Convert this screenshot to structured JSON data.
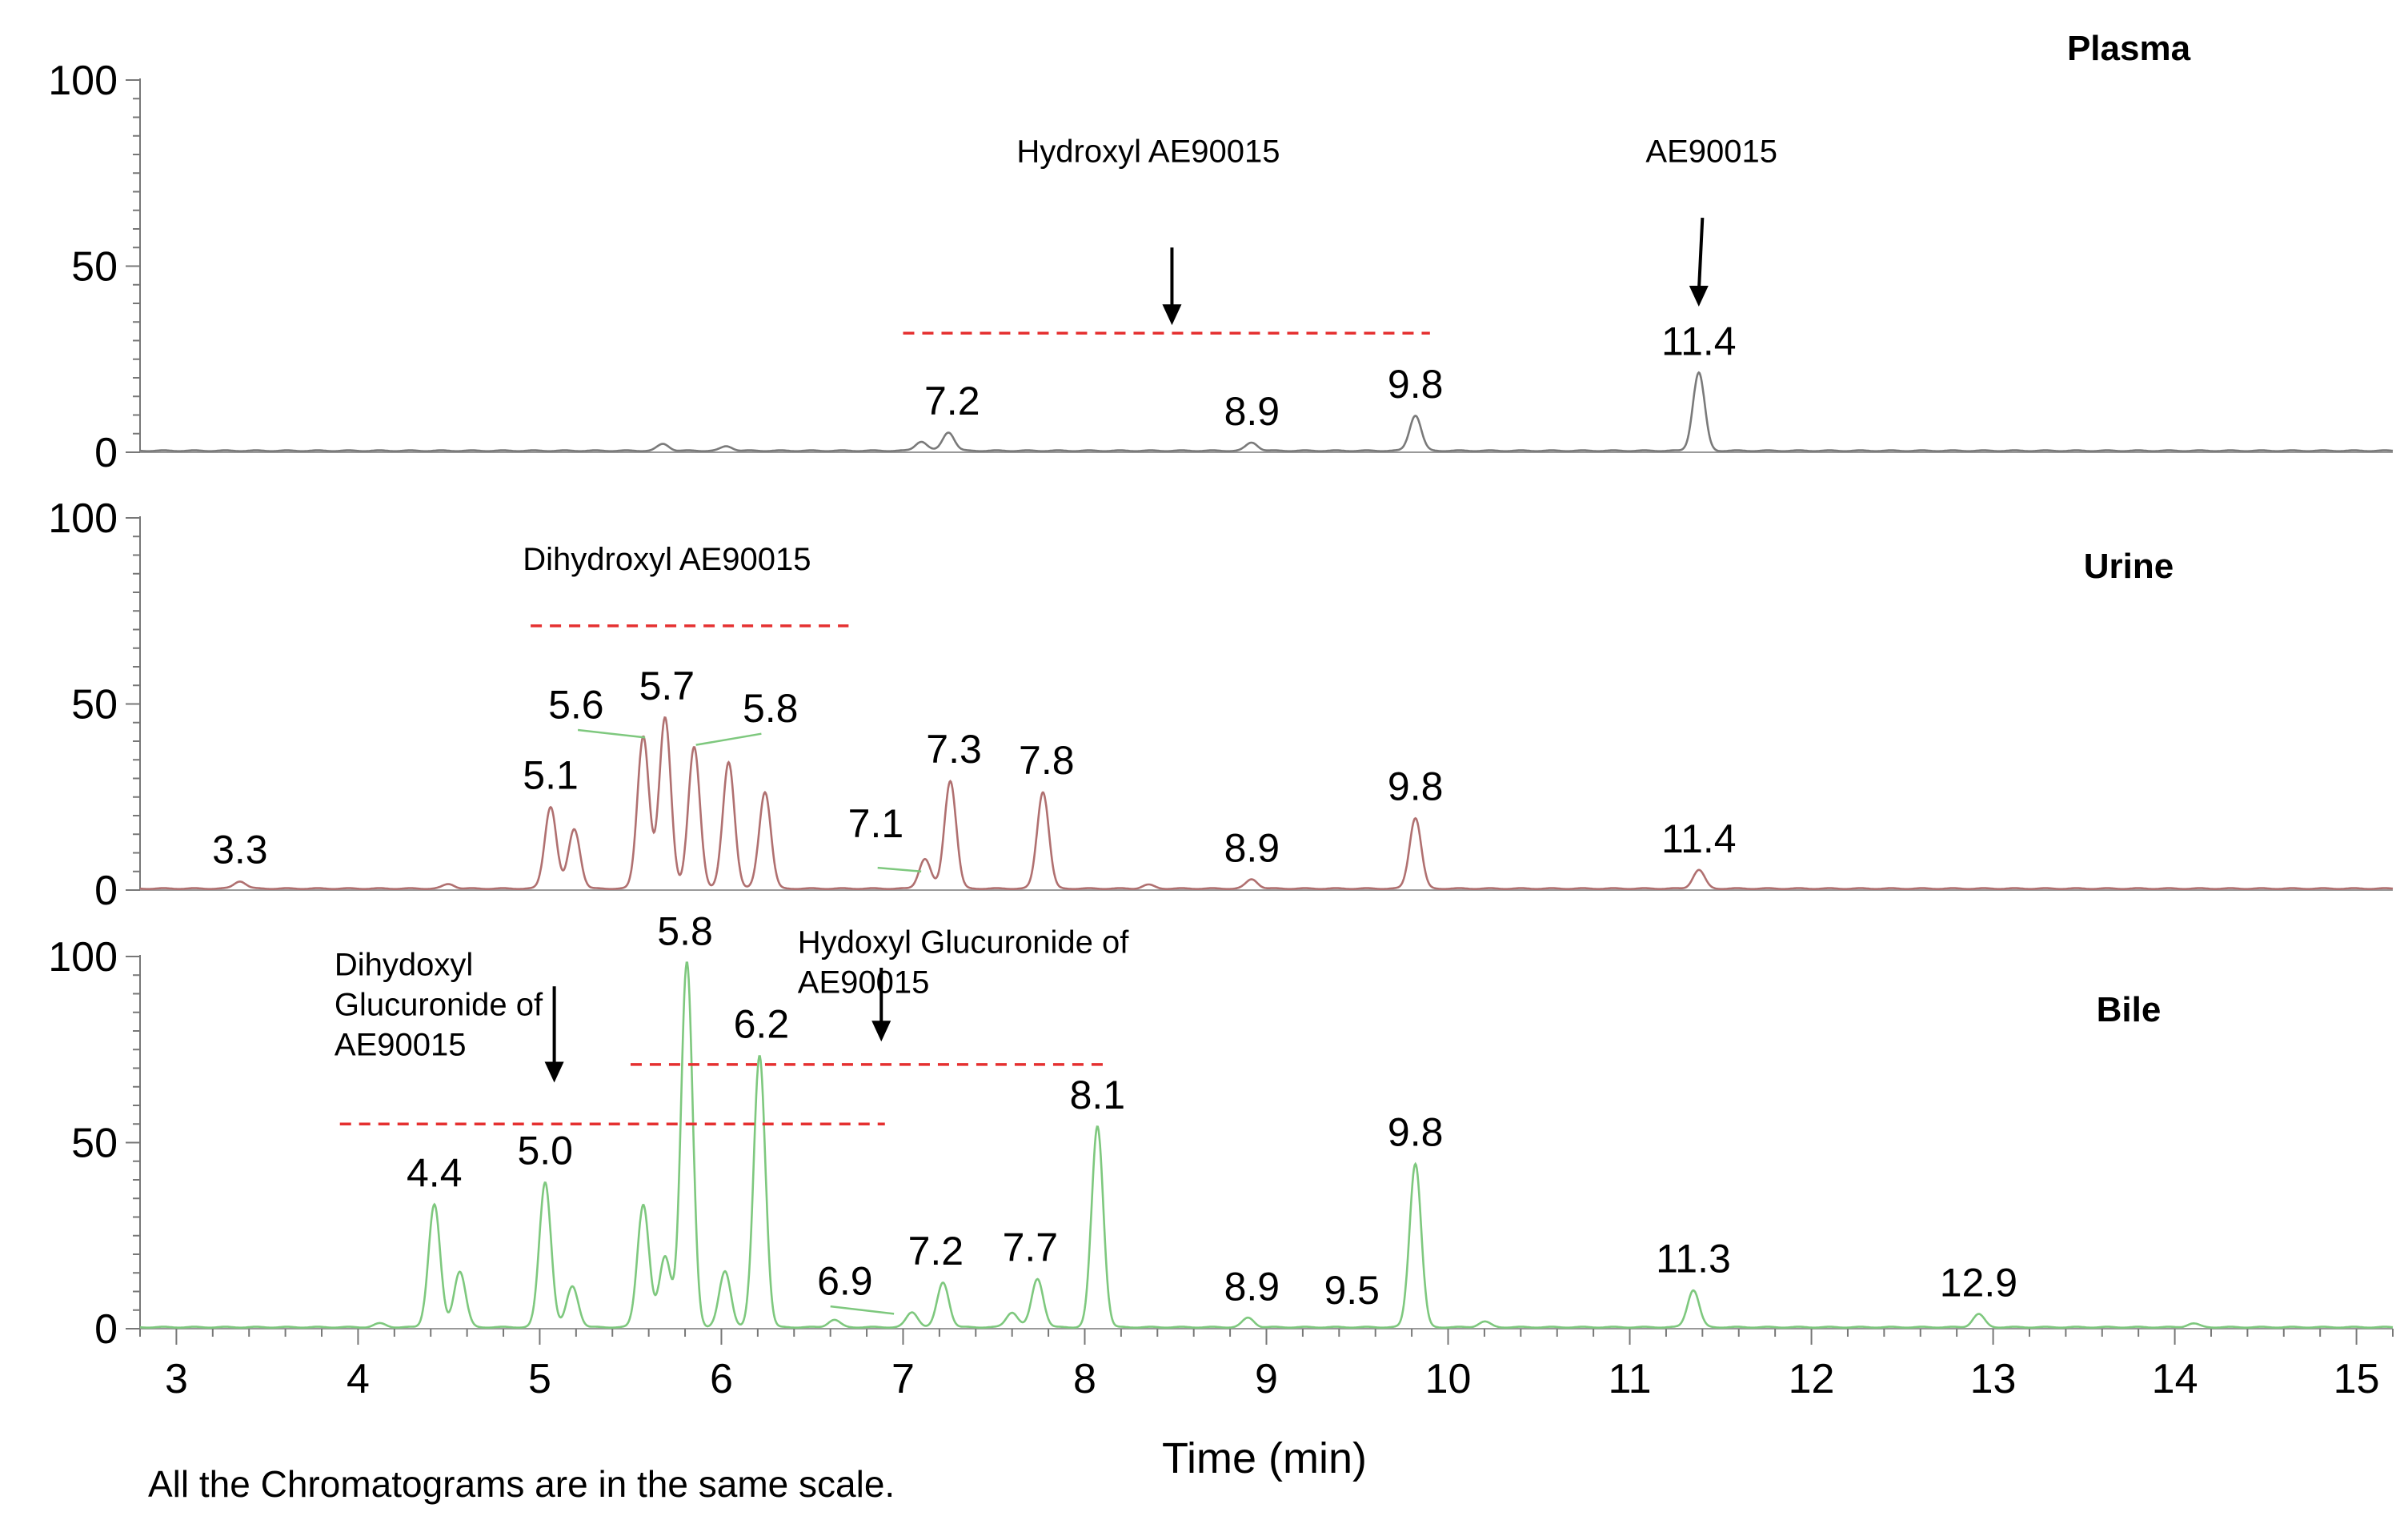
{
  "chart_data": {
    "type": "line",
    "xlabel": "Time (min)",
    "x_ticks": [
      3,
      4,
      5,
      6,
      7,
      8,
      9,
      10,
      11,
      12,
      13,
      14,
      15
    ],
    "xlim": [
      2.8,
      15.2
    ],
    "y_ticks": [
      0,
      50,
      100
    ],
    "ylim": [
      0,
      100
    ],
    "footnote": "All the Chromatograms are in the same scale.",
    "panels": [
      {
        "name": "Plasma",
        "color": "#7a7a7a",
        "peaks": [
          {
            "t": 5.68,
            "h": 1.8
          },
          {
            "t": 6.03,
            "h": 1.2
          },
          {
            "t": 7.1,
            "h": 2.5
          },
          {
            "t": 7.25,
            "h": 5
          },
          {
            "t": 8.92,
            "h": 2.2
          },
          {
            "t": 9.82,
            "h": 9.5
          },
          {
            "t": 11.38,
            "h": 21
          }
        ],
        "peak_labels": [
          {
            "text": "7.2",
            "t": 7.27,
            "h": 5
          },
          {
            "text": "8.9",
            "t": 8.92,
            "h": 2.2
          },
          {
            "text": "9.8",
            "t": 9.82,
            "h": 9.5
          },
          {
            "text": "11.4",
            "t": 11.38,
            "h": 21
          }
        ],
        "annotations": [
          {
            "text": "Hydroxyl AE90015",
            "t": 8.35,
            "y": 78,
            "arrow": [
              8.48,
              55,
              8.48,
              35
            ]
          },
          {
            "text": "AE90015",
            "t": 11.45,
            "y": 78,
            "arrow": [
              11.4,
              63,
              11.38,
              40
            ]
          }
        ],
        "ranges": [
          {
            "from": 7.0,
            "to": 9.9,
            "y": 32
          }
        ]
      },
      {
        "name": "Urine",
        "color": "#b07070",
        "peaks": [
          {
            "t": 3.35,
            "h": 2
          },
          {
            "t": 4.5,
            "h": 1.2
          },
          {
            "t": 5.06,
            "h": 22
          },
          {
            "t": 5.19,
            "h": 16
          },
          {
            "t": 5.57,
            "h": 41
          },
          {
            "t": 5.69,
            "h": 46
          },
          {
            "t": 5.85,
            "h": 38
          },
          {
            "t": 6.04,
            "h": 34
          },
          {
            "t": 6.24,
            "h": 26
          },
          {
            "t": 7.12,
            "h": 8
          },
          {
            "t": 7.26,
            "h": 29
          },
          {
            "t": 7.77,
            "h": 26
          },
          {
            "t": 8.35,
            "h": 1
          },
          {
            "t": 8.92,
            "h": 2.5
          },
          {
            "t": 9.82,
            "h": 19
          },
          {
            "t": 11.38,
            "h": 5
          }
        ],
        "peak_labels": [
          {
            "text": "3.3",
            "t": 3.35,
            "h": 2
          },
          {
            "text": "5.1",
            "t": 5.06,
            "h": 22
          },
          {
            "text": "5.6",
            "t": 5.2,
            "h": 41
          },
          {
            "text": "5.7",
            "t": 5.7,
            "h": 46
          },
          {
            "text": "5.8",
            "t": 6.27,
            "h": 40
          },
          {
            "text": "7.1",
            "t": 6.85,
            "h": 9
          },
          {
            "text": "7.3",
            "t": 7.28,
            "h": 29
          },
          {
            "text": "7.8",
            "t": 7.79,
            "h": 26
          },
          {
            "text": "8.9",
            "t": 8.92,
            "h": 2.5
          },
          {
            "text": "9.8",
            "t": 9.82,
            "h": 19
          },
          {
            "text": "11.4",
            "t": 11.38,
            "h": 5
          }
        ],
        "annotations": [
          {
            "text": "Dihydroxyl AE90015",
            "t": 5.7,
            "y": 86
          }
        ],
        "ranges": [
          {
            "from": 4.95,
            "to": 6.7,
            "y": 71
          }
        ]
      },
      {
        "name": "Bile",
        "color": "#7ec87e",
        "peaks": [
          {
            "t": 4.12,
            "h": 1
          },
          {
            "t": 4.42,
            "h": 33
          },
          {
            "t": 4.56,
            "h": 15
          },
          {
            "t": 5.03,
            "h": 39
          },
          {
            "t": 5.18,
            "h": 11
          },
          {
            "t": 5.57,
            "h": 33
          },
          {
            "t": 5.69,
            "h": 19
          },
          {
            "t": 5.81,
            "h": 98
          },
          {
            "t": 6.02,
            "h": 15
          },
          {
            "t": 6.21,
            "h": 73
          },
          {
            "t": 6.62,
            "h": 2
          },
          {
            "t": 7.05,
            "h": 4
          },
          {
            "t": 7.22,
            "h": 12
          },
          {
            "t": 7.6,
            "h": 4
          },
          {
            "t": 7.74,
            "h": 13
          },
          {
            "t": 8.07,
            "h": 54
          },
          {
            "t": 8.9,
            "h": 2.5
          },
          {
            "t": 9.82,
            "h": 44
          },
          {
            "t": 10.2,
            "h": 1.5
          },
          {
            "t": 11.35,
            "h": 10
          },
          {
            "t": 12.92,
            "h": 3.5
          },
          {
            "t": 14.1,
            "h": 1
          }
        ],
        "peak_labels": [
          {
            "text": "4.4",
            "t": 4.42,
            "h": 33
          },
          {
            "text": "5.0",
            "t": 5.03,
            "h": 39
          },
          {
            "text": "5.8",
            "t": 5.8,
            "h": 98
          },
          {
            "text": "6.2",
            "t": 6.22,
            "h": 73
          },
          {
            "text": "6.9",
            "t": 6.68,
            "h": 4
          },
          {
            "text": "7.2",
            "t": 7.18,
            "h": 12
          },
          {
            "text": "7.7",
            "t": 7.7,
            "h": 13
          },
          {
            "text": "8.1",
            "t": 8.07,
            "h": 54
          },
          {
            "text": "8.9",
            "t": 8.92,
            "h": 2.5
          },
          {
            "text": "9.5",
            "t": 9.47,
            "h": 1.5
          },
          {
            "text": "9.8",
            "t": 9.82,
            "h": 44
          },
          {
            "text": "11.3",
            "t": 11.35,
            "h": 10
          },
          {
            "text": "12.9",
            "t": 12.92,
            "h": 3.5
          }
        ],
        "annotations": [
          {
            "lines": [
              "Dihydoxyl",
              "Glucuronide of",
              "AE90015"
            ],
            "t": 3.87,
            "y": 95,
            "arrow": [
              5.08,
              92,
              5.08,
              67
            ]
          },
          {
            "lines": [
              "Hydoxyl Glucuronide of",
              "AE90015"
            ],
            "t": 6.42,
            "y": 101,
            "arrow": [
              6.88,
              97,
              6.88,
              78
            ]
          }
        ],
        "ranges": [
          {
            "from": 3.9,
            "to": 6.9,
            "y": 55
          },
          {
            "from": 5.5,
            "to": 8.1,
            "y": 71
          }
        ]
      }
    ]
  }
}
